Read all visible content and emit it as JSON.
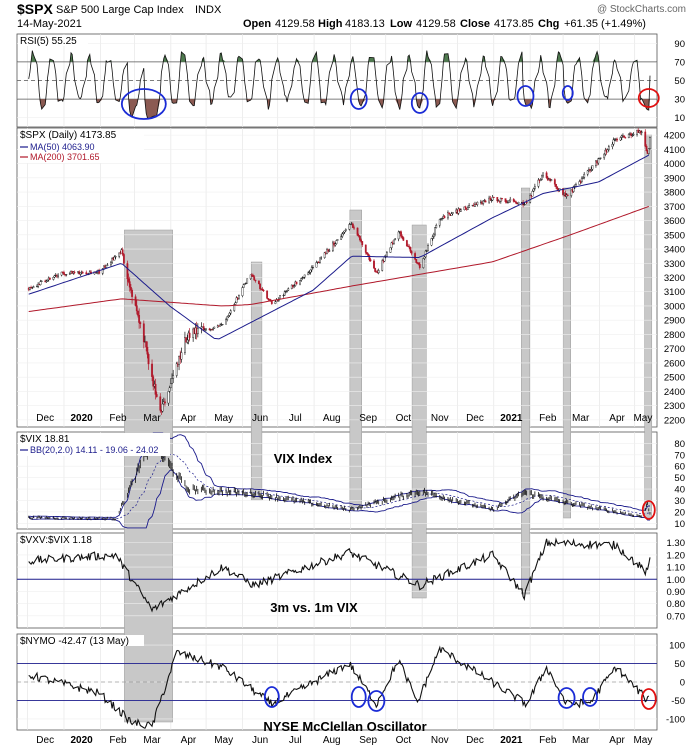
{
  "header": {
    "symbol": "$SPX",
    "name": "S&P 500 Large Cap Index",
    "exchange": "INDX",
    "date": "14-May-2021",
    "open_label": "Open",
    "open": "4129.58",
    "high_label": "High",
    "high": "4183.13",
    "low_label": "Low",
    "low": "4129.58",
    "close_label": "Close",
    "close": "4173.85",
    "chg_label": "Chg",
    "chg": "+61.35 (+1.49%)",
    "watermark": "@ StockCharts.com"
  },
  "colors": {
    "price": "#000000",
    "ma50": "#1c1c8c",
    "ma200": "#b0182a",
    "rsi_above": "#4f7a4f",
    "rsi_below": "#8b5a52",
    "highlight": "#c8c8c8",
    "circle_blue": "#1a2bd6",
    "circle_red": "#e01010",
    "bb": "#1c1c8c"
  },
  "annotations": {
    "vix_label": "VIX Index",
    "ratio_label": "3m vs. 1m VIX",
    "nymo_label": "NYSE McClellan Oscillator"
  },
  "x_axis": {
    "labels": [
      "Dec",
      "2020",
      "Feb",
      "Mar",
      "Apr",
      "May",
      "Jun",
      "Jul",
      "Aug",
      "Sep",
      "Oct",
      "Nov",
      "Dec",
      "2021",
      "Feb",
      "Mar",
      "Apr",
      "May"
    ],
    "bold": [
      "2020",
      "2021"
    ]
  },
  "chart_data": [
    {
      "type": "line",
      "panel": "RSI",
      "title": "RSI(5) 55.25",
      "ylim": [
        0,
        100
      ],
      "y_ticks": [
        10,
        30,
        50,
        70,
        90
      ],
      "reference_lines": [
        30,
        50,
        70
      ],
      "note": "oscillating RSI(5), shaded green above 70 and brown below 30"
    },
    {
      "type": "line",
      "panel": "SPX",
      "title": "$SPX (Daily) 4173.85",
      "legend": [
        {
          "name": "MA(50) 4063.90",
          "color": "#1c1c8c"
        },
        {
          "name": "MA(200) 3701.65",
          "color": "#b0182a"
        }
      ],
      "ylim": [
        2150,
        4250
      ],
      "y_ticks": [
        2200,
        2300,
        2400,
        2500,
        2600,
        2700,
        2800,
        2900,
        3000,
        3100,
        3200,
        3300,
        3400,
        3500,
        3600,
        3700,
        3800,
        3900,
        4000,
        4100,
        4200
      ],
      "series": [
        {
          "name": "$SPX",
          "x": [
            "2019-12-01",
            "2019-12-31",
            "2020-01-31",
            "2020-02-19",
            "2020-03-09",
            "2020-03-23",
            "2020-04-15",
            "2020-05-15",
            "2020-06-08",
            "2020-06-26",
            "2020-07-31",
            "2020-09-02",
            "2020-09-23",
            "2020-10-12",
            "2020-10-30",
            "2020-11-16",
            "2020-12-31",
            "2021-01-29",
            "2021-02-12",
            "2021-03-04",
            "2021-04-15",
            "2021-05-07",
            "2021-05-12",
            "2021-05-14"
          ],
          "values": [
            3120,
            3230,
            3240,
            3385,
            2750,
            2237,
            2790,
            2870,
            3230,
            3010,
            3270,
            3580,
            3230,
            3530,
            3270,
            3620,
            3756,
            3720,
            3930,
            3770,
            4170,
            4230,
            4060,
            4173
          ]
        },
        {
          "name": "MA(50)",
          "x": [
            "2019-12-01",
            "2020-02-19",
            "2020-03-31",
            "2020-05-10",
            "2020-07-31",
            "2020-09-02",
            "2020-10-30",
            "2020-12-31",
            "2021-02-12",
            "2021-03-31",
            "2021-05-14"
          ],
          "values": [
            3080,
            3300,
            3000,
            2760,
            3110,
            3350,
            3340,
            3620,
            3790,
            3870,
            4064
          ]
        },
        {
          "name": "MA(200)",
          "x": [
            "2019-12-01",
            "2020-02-19",
            "2020-05-15",
            "2020-06-08",
            "2020-09-02",
            "2020-12-31",
            "2021-03-04",
            "2021-05-14"
          ],
          "values": [
            2960,
            3050,
            3000,
            3010,
            3140,
            3310,
            3490,
            3702
          ]
        }
      ]
    },
    {
      "type": "line",
      "panel": "VIX",
      "title": "$VIX 18.81",
      "legend": [
        {
          "name": "BB(20,2.0) 14.11 - 19.06 - 24.02",
          "color": "#1c1c8c"
        }
      ],
      "ylim": [
        5,
        90
      ],
      "y_ticks": [
        10,
        20,
        30,
        40,
        50,
        60,
        70,
        80
      ],
      "series": [
        {
          "name": "$VIX",
          "x": [
            "2019-12-01",
            "2020-02-14",
            "2020-03-16",
            "2020-04-15",
            "2020-06-11",
            "2020-08-31",
            "2020-10-30",
            "2020-12-31",
            "2021-01-27",
            "2021-03-04",
            "2021-05-07",
            "2021-05-12",
            "2021-05-14"
          ],
          "values": [
            15,
            14,
            82,
            40,
            36,
            22,
            38,
            22,
            37,
            28,
            16,
            27,
            18.81
          ]
        }
      ]
    },
    {
      "type": "line",
      "panel": "VXV:VIX",
      "title": "$VXV:$VIX 1.18",
      "ylim": [
        0.6,
        1.38
      ],
      "y_ticks": [
        0.7,
        0.8,
        0.9,
        1.0,
        1.1,
        1.2,
        1.3
      ],
      "reference_lines": [
        1.0
      ],
      "series": [
        {
          "name": "$VXV:$VIX",
          "x": [
            "2019-12-01",
            "2020-02-14",
            "2020-03-16",
            "2020-05-15",
            "2020-06-11",
            "2020-08-31",
            "2020-10-30",
            "2020-12-31",
            "2021-01-27",
            "2021-02-15",
            "2021-04-15",
            "2021-05-12",
            "2021-05-14"
          ],
          "values": [
            1.15,
            1.2,
            0.75,
            1.1,
            0.95,
            1.22,
            0.95,
            1.2,
            0.87,
            1.3,
            1.28,
            1.05,
            1.18
          ]
        }
      ]
    },
    {
      "type": "line",
      "panel": "NYMO",
      "title": "$NYMO -42.47 (13 May)",
      "ylim": [
        -130,
        130
      ],
      "y_ticks": [
        -100,
        -50,
        0,
        50,
        100
      ],
      "reference_lines": [
        -50,
        50
      ],
      "series": [
        {
          "name": "$NYMO",
          "x": [
            "2019-12-01",
            "2020-01-31",
            "2020-02-28",
            "2020-03-16",
            "2020-04-06",
            "2020-05-15",
            "2020-06-26",
            "2020-08-31",
            "2020-09-23",
            "2020-10-12",
            "2020-10-28",
            "2020-11-16",
            "2021-01-29",
            "2021-02-15",
            "2021-03-04",
            "2021-03-24",
            "2021-04-15",
            "2021-05-12",
            "2021-05-13"
          ],
          "values": [
            20,
            -30,
            -110,
            -120,
            80,
            40,
            -60,
            50,
            -60,
            60,
            -55,
            90,
            -60,
            40,
            -60,
            -55,
            40,
            -50,
            -42.47
          ]
        }
      ]
    }
  ]
}
